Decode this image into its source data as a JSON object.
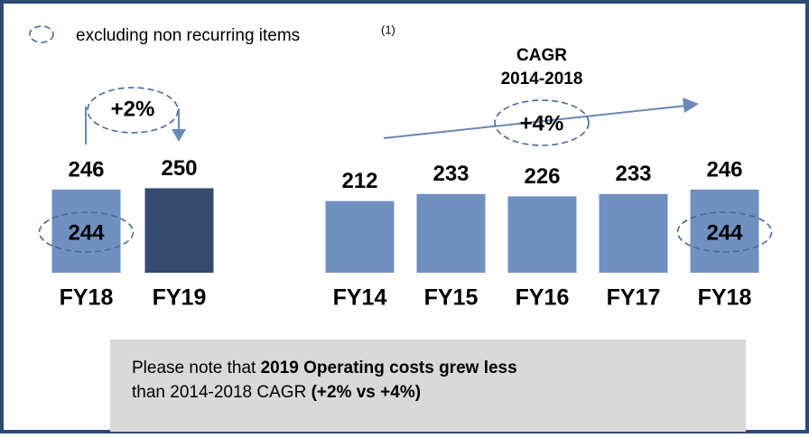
{
  "legend": {
    "label": "excluding non recurring items",
    "note": "(1)"
  },
  "chart_data": [
    {
      "type": "bar",
      "categories": [
        "FY18",
        "FY19"
      ],
      "values": [
        246,
        250
      ],
      "colors": [
        "#7090c0",
        "#364b6f"
      ],
      "adjusted_values": [
        244,
        null
      ],
      "growth": "+2%",
      "ylim": [
        0,
        700
      ]
    },
    {
      "type": "bar",
      "categories": [
        "FY14",
        "FY15",
        "FY16",
        "FY17",
        "FY18"
      ],
      "values": [
        212,
        233,
        226,
        233,
        246
      ],
      "colors": [
        "#7090c0",
        "#7090c0",
        "#7090c0",
        "#7090c0",
        "#7090c0"
      ],
      "adjusted_values": [
        null,
        null,
        null,
        null,
        244
      ],
      "annotation_title": [
        "CAGR",
        "2014-2018"
      ],
      "growth": "+4%",
      "ylim": [
        0,
        700
      ]
    }
  ],
  "note": [
    {
      "text": "Please note that ",
      "bold": false
    },
    {
      "text": "2019 Operating costs grew less",
      "bold": true
    },
    {
      "text": "than 2014-2018 CAGR ",
      "bold": false,
      "break": true
    },
    {
      "text": "(+2% vs +4%)",
      "bold": true
    }
  ]
}
